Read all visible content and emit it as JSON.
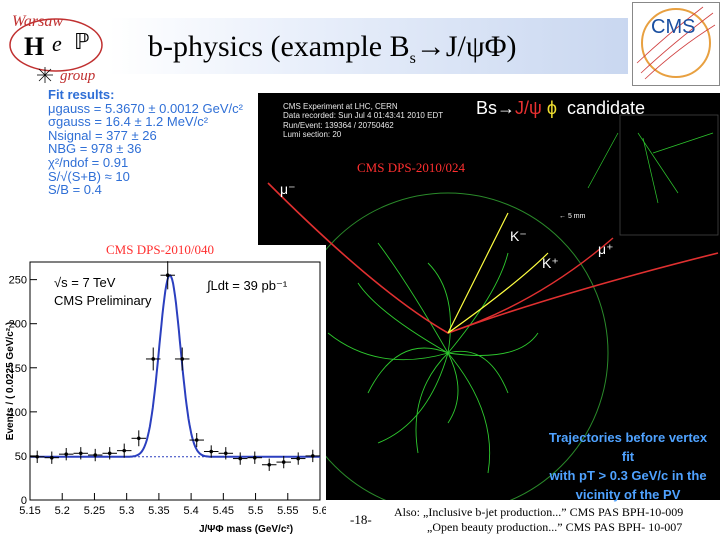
{
  "title": {
    "prefix": "b-physics (example B",
    "sub": "s",
    "suffix": "→J/ψΦ)"
  },
  "logos": {
    "hep_letters": [
      "H",
      "e",
      "ℙ"
    ],
    "hep_wordmark": [
      "Warsaw",
      "group"
    ],
    "cms_wordmark": "CMS"
  },
  "fit_results": {
    "heading": "Fit results:",
    "lines": [
      "μgauss = 5.3670 ± 0.0012 GeV/c²",
      "σgauss = 16.4 ± 1.2 MeV/c²",
      "Nsignal = 377 ± 26",
      "NBG = 978 ± 36",
      "χ²/ndof = 0.91",
      "S/√(S+B) ≈ 10",
      "S/B = 0.4"
    ]
  },
  "event_display": {
    "info": [
      "CMS Experiment at LHC, CERN",
      "Data recorded: Sun Jul 4 01:43:41 2010 EDT",
      "Run/Event: 139364 / 20750462",
      "Lumi section: 20"
    ],
    "candidate_prefix": "Bs",
    "candidate_arrow": "→",
    "candidate_jpsi": "J/ψ",
    "candidate_phi": "ϕ",
    "candidate_word": "candidate",
    "dps_ref": "CMS DPS-2010/024",
    "labels": {
      "mu_minus": "μ⁻",
      "mu_plus": "μ⁺",
      "k_minus": "K⁻",
      "k_plus": "K⁺",
      "scale": "← 5 mm"
    },
    "caption": [
      "Trajectories before vertex",
      "fit",
      "with pT > 0.3 GeV/c in the",
      "vicinity of the PV"
    ]
  },
  "plot": {
    "dps_ref": "CMS DPS-2010/040",
    "energy_label": "√s = 7 TeV",
    "preliminary": "CMS Preliminary",
    "lumi_label": "∫Ldt = 39 pb⁻¹"
  },
  "chart_data": {
    "type": "scatter",
    "title": "",
    "xlabel": "J/ΨΦ mass (GeV/c²)",
    "ylabel": "Events / ( 0.0225 GeV/c² )",
    "xlim": [
      5.15,
      5.6
    ],
    "ylim": [
      0,
      270
    ],
    "xticks": [
      "5.15",
      "5.2",
      "5.25",
      "5.3",
      "5.35",
      "5.4",
      "5.45",
      "5.5",
      "5.55",
      "5.6"
    ],
    "yticks": [
      "0",
      "50",
      "100",
      "150",
      "200",
      "250"
    ],
    "points": {
      "x": [
        5.1612,
        5.1838,
        5.2062,
        5.2288,
        5.2512,
        5.2737,
        5.2962,
        5.3188,
        5.3412,
        5.3637,
        5.3862,
        5.4087,
        5.4312,
        5.4538,
        5.4762,
        5.4988,
        5.5212,
        5.5437,
        5.5662,
        5.5888
      ],
      "y": [
        49,
        48,
        52,
        53,
        51,
        53,
        56,
        70,
        160,
        255,
        160,
        68,
        55,
        53,
        47,
        48,
        40,
        43,
        47,
        50
      ],
      "err": [
        7,
        7,
        7,
        7,
        7,
        7,
        8,
        9,
        13,
        16,
        13,
        8,
        7,
        7,
        7,
        7,
        7,
        7,
        7,
        7
      ]
    },
    "fit": {
      "mean": 5.367,
      "sigma": 0.0164,
      "background": 49,
      "peak": 255
    }
  },
  "footer": {
    "page_number": "-18-",
    "also_lines": [
      "Also: „Inclusive b-jet production...” CMS PAS BPH-10-009",
      "„Open beauty production...”  CMS PAS BPH- 10-007"
    ]
  }
}
